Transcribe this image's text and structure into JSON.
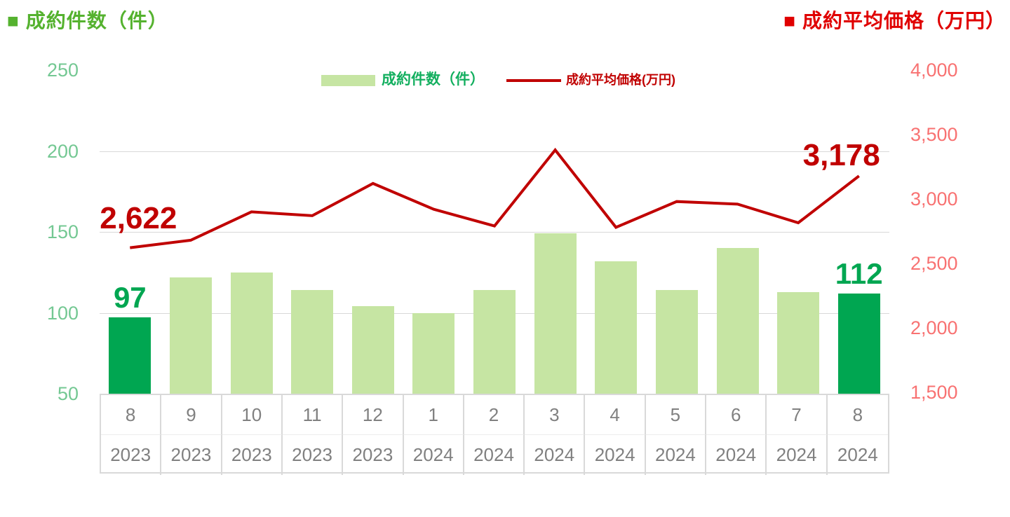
{
  "header": {
    "left_title": "■ 成約件数（件）",
    "right_title": "■ 成約平均価格（万円）"
  },
  "legend": {
    "bars_label": "成約件数（件）",
    "line_label": "成約平均価格(万円)"
  },
  "colors": {
    "title_green": "#55B22F",
    "title_red": "#E00000",
    "bar_light_green": "#C6E5A3",
    "bar_dark_green": "#00A651",
    "line_red": "#C00000",
    "annotation_green": "#00A651",
    "annotation_red": "#C00000",
    "left_axis_text": "#74C893",
    "right_axis_text": "#F87272",
    "x_axis_text": "#808080",
    "gridline_gray": "#D9D9D9",
    "table_border_gray": "#D9D9D9",
    "table_row_divider": "#ECECEC",
    "legend_green_text": "#13AF5F"
  },
  "chart_data": {
    "type": "combo bar+line",
    "categories": [
      {
        "month": "8",
        "year": "2023"
      },
      {
        "month": "9",
        "year": "2023"
      },
      {
        "month": "10",
        "year": "2023"
      },
      {
        "month": "11",
        "year": "2023"
      },
      {
        "month": "12",
        "year": "2023"
      },
      {
        "month": "1",
        "year": "2024"
      },
      {
        "month": "2",
        "year": "2024"
      },
      {
        "month": "3",
        "year": "2024"
      },
      {
        "month": "4",
        "year": "2024"
      },
      {
        "month": "5",
        "year": "2024"
      },
      {
        "month": "6",
        "year": "2024"
      },
      {
        "month": "7",
        "year": "2024"
      },
      {
        "month": "8",
        "year": "2024"
      }
    ],
    "series": [
      {
        "name": "成約件数（件）",
        "type": "bar",
        "axis": "left",
        "values": [
          97,
          122,
          125,
          114,
          104,
          100,
          114,
          149,
          132,
          114,
          140,
          113,
          112
        ],
        "highlight_indices": [
          0,
          12
        ]
      },
      {
        "name": "成約平均価格(万円)",
        "type": "line",
        "axis": "right",
        "values": [
          2622,
          2680,
          2900,
          2870,
          3120,
          2920,
          2790,
          3380,
          2780,
          2980,
          2960,
          2815,
          3178
        ]
      }
    ],
    "left_axis": {
      "min": 50,
      "max": 250,
      "ticks": [
        {
          "label": "250",
          "value": 250
        },
        {
          "label": "200",
          "value": 200
        },
        {
          "label": "150",
          "value": 150
        },
        {
          "label": "100",
          "value": 100
        },
        {
          "label": "50",
          "value": 50
        }
      ]
    },
    "right_axis": {
      "min": 1500,
      "max": 4000,
      "ticks": [
        {
          "label": "4,000",
          "value": 4000
        },
        {
          "label": "3,500",
          "value": 3500
        },
        {
          "label": "3,000",
          "value": 3000
        },
        {
          "label": "2,500",
          "value": 2500
        },
        {
          "label": "2,000",
          "value": 2000
        },
        {
          "label": "1,500",
          "value": 1500
        }
      ]
    },
    "gridline_values": [
      200,
      150,
      100
    ],
    "grid": "horizontal only",
    "legend_position": "top center",
    "annotations": [
      {
        "text": "97",
        "series": "bar",
        "index": 0
      },
      {
        "text": "112",
        "series": "bar",
        "index": 12
      },
      {
        "text": "2,622",
        "series": "line",
        "index": 0
      },
      {
        "text": "3,178",
        "series": "line",
        "index": 12
      }
    ]
  }
}
